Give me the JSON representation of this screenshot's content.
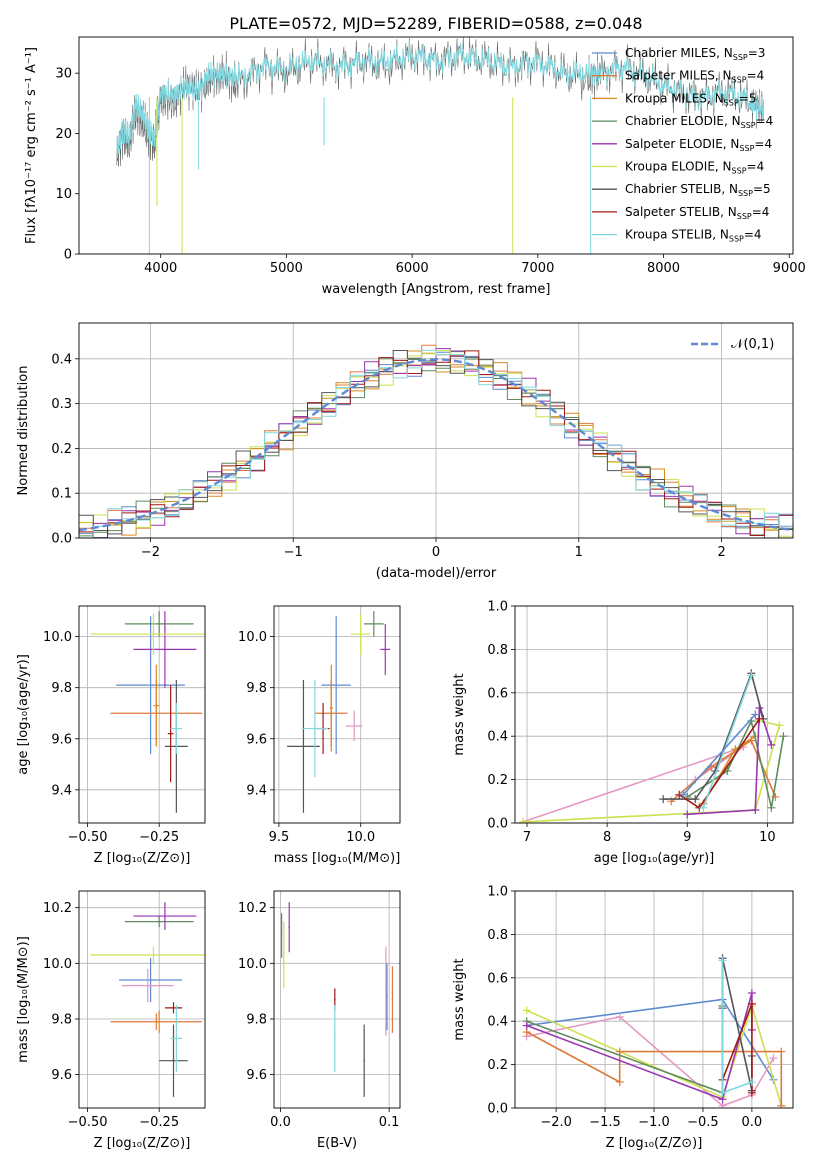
{
  "title": "PLATE=0572, MJD=52289, FIBERID=0588, z=0.048",
  "legend_entries": [
    {
      "label": "Chabrier MILES, N",
      "sub": "SSP",
      "suffix": "=3",
      "color": "#5f8ad3"
    },
    {
      "label": "Salpeter MILES, N",
      "sub": "SSP",
      "suffix": "=4",
      "color": "#e07a3c"
    },
    {
      "label": "Kroupa MILES, N",
      "sub": "SSP",
      "suffix": "=5",
      "color": "#d98a1f"
    },
    {
      "label": "Chabrier ELODIE, N",
      "sub": "SSP",
      "suffix": "=4",
      "color": "#5e8c5e"
    },
    {
      "label": "Salpeter ELODIE, N",
      "sub": "SSP",
      "suffix": "=4",
      "color": "#9a36b0"
    },
    {
      "label": "Kroupa ELODIE, N",
      "sub": "SSP",
      "suffix": "=4",
      "color": "#cde050"
    },
    {
      "label": "Chabrier STELIB, N",
      "sub": "SSP",
      "suffix": "=5",
      "color": "#555555"
    },
    {
      "label": "Salpeter STELIB, N",
      "sub": "SSP",
      "suffix": "=4",
      "color": "#a01818"
    },
    {
      "label": "Kroupa STELIB, N",
      "sub": "SSP",
      "suffix": "=4",
      "color": "#7fd8e0"
    }
  ],
  "chart_data": [
    {
      "id": "spectrum",
      "type": "line",
      "xlabel": "wavelength [Angstrom, rest frame]",
      "ylabel": "Flux [fλ10⁻¹⁷ erg cm⁻² s⁻¹ A⁻¹]",
      "xlim": [
        3350,
        9030
      ],
      "ylim": [
        0,
        36
      ],
      "xticks": [
        4000,
        5000,
        6000,
        7000,
        8000,
        9000
      ],
      "yticks": [
        0,
        10,
        20,
        30
      ],
      "x": [
        3650,
        3700,
        3750,
        3800,
        3850,
        3900,
        3950,
        4000,
        4100,
        4200,
        4300,
        4400,
        4500,
        4600,
        4800,
        5000,
        5200,
        5400,
        5600,
        5800,
        6000,
        6200,
        6400,
        6600,
        6800,
        7000,
        7200,
        7400,
        7500,
        7700,
        7900,
        8100,
        8300,
        8500,
        8700,
        8800
      ],
      "series": [
        {
          "name": "observed",
          "color": "#666666",
          "values": [
            16,
            20,
            18,
            24,
            22,
            20,
            18,
            26,
            25,
            28,
            27,
            29,
            30,
            28,
            31,
            30,
            32,
            31,
            32,
            31,
            33,
            32,
            33,
            32,
            31,
            32,
            30,
            29,
            30,
            31,
            29,
            27,
            26,
            27,
            25,
            24
          ]
        },
        {
          "name": "model",
          "color": "#7fd8e0",
          "values": [
            17,
            21,
            19,
            25,
            23,
            21,
            19,
            27,
            26,
            28,
            27,
            30,
            30,
            29,
            31,
            31,
            32,
            31,
            32,
            32,
            33,
            32,
            33,
            32,
            31,
            32,
            30,
            30,
            30,
            31,
            29,
            27,
            26,
            27,
            25,
            24
          ]
        }
      ]
    },
    {
      "id": "residual-histogram",
      "type": "line",
      "xlabel": "(data-model)/error",
      "ylabel": "Normed distribution",
      "xlim": [
        -2.5,
        2.5
      ],
      "ylim": [
        0,
        0.48
      ],
      "xticks": [
        -2,
        -1,
        0,
        1,
        2
      ],
      "yticks": [
        0.0,
        0.1,
        0.2,
        0.3,
        0.4
      ],
      "legend": "𝒩(0,1)",
      "gaussian": {
        "mean": 0,
        "sigma": 1,
        "color": "#5f8ad3"
      }
    },
    {
      "id": "age-vs-Z",
      "type": "scatter",
      "xlabel": "Z [log₁₀(Z/Z⊙)]",
      "ylabel": "age  [log₁₀(age/yr)]",
      "xlim": [
        -0.53,
        -0.09
      ],
      "ylim": [
        9.27,
        10.12
      ],
      "xticks": [
        -0.5,
        -0.25
      ],
      "yticks": [
        9.4,
        9.6,
        9.8,
        10.0
      ],
      "points": [
        {
          "x": -0.28,
          "y": 9.81,
          "xerr": 0.12,
          "yerr": 0.27,
          "color": "#5f8ad3"
        },
        {
          "x": -0.26,
          "y": 9.7,
          "xerr": 0.16,
          "yerr": 0.13,
          "color": "#e07a3c"
        },
        {
          "x": -0.26,
          "y": 9.73,
          "xerr": 0.01,
          "yerr": 0.16,
          "color": "#d98a1f"
        },
        {
          "x": -0.25,
          "y": 10.05,
          "xerr": 0.12,
          "yerr": 0.05,
          "color": "#5e8c5e"
        },
        {
          "x": -0.23,
          "y": 9.95,
          "xerr": 0.11,
          "yerr": 0.15,
          "color": "#9a36b0"
        },
        {
          "x": -0.27,
          "y": 10.01,
          "xerr": 0.22,
          "yerr": 0.08,
          "color": "#cde050"
        },
        {
          "x": -0.19,
          "y": 9.57,
          "xerr": 0.04,
          "yerr": 0.26,
          "color": "#555555"
        },
        {
          "x": -0.21,
          "y": 9.62,
          "xerr": 0.01,
          "yerr": 0.19,
          "color": "#a01818"
        },
        {
          "x": -0.19,
          "y": 9.64,
          "xerr": 0.02,
          "yerr": 0.1,
          "color": "#7fd8e0"
        }
      ]
    },
    {
      "id": "age-vs-mass",
      "type": "scatter",
      "xlabel": "mass [log₁₀(M/M⊙)]",
      "ylabel": "",
      "xlim": [
        9.47,
        10.24
      ],
      "ylim": [
        9.27,
        10.12
      ],
      "xticks": [
        9.5,
        10.0
      ],
      "yticks": [
        9.4,
        9.6,
        9.8,
        10.0
      ],
      "points": [
        {
          "x": 9.85,
          "y": 9.81,
          "xerr": 0.09,
          "yerr": 0.27,
          "color": "#5f8ad3"
        },
        {
          "x": 9.82,
          "y": 9.7,
          "xerr": 0.1,
          "yerr": 0.13,
          "color": "#e07a3c"
        },
        {
          "x": 9.82,
          "y": 9.72,
          "xerr": 0.01,
          "yerr": 0.17,
          "color": "#d98a1f"
        },
        {
          "x": 10.08,
          "y": 10.05,
          "xerr": 0.06,
          "yerr": 0.05,
          "color": "#5e8c5e"
        },
        {
          "x": 10.15,
          "y": 9.95,
          "xerr": 0.03,
          "yerr": 0.1,
          "color": "#9a36b0"
        },
        {
          "x": 10.0,
          "y": 10.01,
          "xerr": 0.06,
          "yerr": 0.08,
          "color": "#cde050"
        },
        {
          "x": 9.65,
          "y": 9.57,
          "xerr": 0.1,
          "yerr": 0.26,
          "color": "#555555"
        },
        {
          "x": 9.77,
          "y": 9.64,
          "xerr": 0.04,
          "yerr": 0.1,
          "color": "#a01818"
        },
        {
          "x": 9.72,
          "y": 9.64,
          "xerr": 0.08,
          "yerr": 0.19,
          "color": "#7fd8e0"
        },
        {
          "x": 9.96,
          "y": 9.65,
          "xerr": 0.05,
          "yerr": 0.06,
          "color": "#e598c4"
        }
      ]
    },
    {
      "id": "mass-weight-vs-age",
      "type": "line",
      "xlabel": "age  [log₁₀(age/yr)]",
      "ylabel": "mass weight",
      "xlim": [
        6.85,
        10.32
      ],
      "ylim": [
        0,
        1.0
      ],
      "xticks": [
        7,
        8,
        9,
        10
      ],
      "yticks": [
        0.0,
        0.2,
        0.4,
        0.6,
        0.8,
        1.0
      ],
      "series": [
        {
          "color": "#e598c4",
          "x": [
            6.95,
            9.7,
            9.1
          ],
          "y": [
            0.005,
            0.35,
            0.2
          ]
        },
        {
          "color": "#cde050",
          "x": [
            6.95,
            9.85,
            10.15,
            9.9
          ],
          "y": [
            0.005,
            0.06,
            0.45,
            0.47
          ]
        },
        {
          "color": "#e07a3c",
          "x": [
            8.8,
            9.3,
            9.8,
            10.1
          ],
          "y": [
            0.1,
            0.26,
            0.38,
            0.12
          ]
        },
        {
          "color": "#d98a1f",
          "x": [
            9.2,
            9.6,
            9.85
          ],
          "y": [
            0.09,
            0.34,
            0.4
          ]
        },
        {
          "color": "#5e8c5e",
          "x": [
            9.0,
            9.5,
            9.8,
            10.05,
            10.2
          ],
          "y": [
            0.12,
            0.24,
            0.47,
            0.07,
            0.4
          ]
        },
        {
          "color": "#9a36b0",
          "x": [
            9.0,
            9.85,
            9.9,
            10.05
          ],
          "y": [
            0.04,
            0.06,
            0.53,
            0.36
          ]
        },
        {
          "color": "#555555",
          "x": [
            8.7,
            9.1,
            9.35,
            9.8,
            9.95
          ],
          "y": [
            0.11,
            0.11,
            0.24,
            0.69,
            0.48
          ]
        },
        {
          "color": "#a01818",
          "x": [
            8.9,
            9.15,
            9.9
          ],
          "y": [
            0.13,
            0.07,
            0.48
          ]
        },
        {
          "color": "#7fd8e0",
          "x": [
            9.2,
            9.8
          ],
          "y": [
            0.07,
            0.68
          ]
        },
        {
          "color": "#5f8ad3",
          "x": [
            8.95,
            9.85
          ],
          "y": [
            0.13,
            0.5
          ]
        }
      ]
    },
    {
      "id": "mass-vs-Z",
      "type": "scatter",
      "xlabel": "Z [log₁₀(Z/Z⊙)]",
      "ylabel": "mass [log₁₀(M/M⊙)]",
      "xlim": [
        -0.53,
        -0.09
      ],
      "ylim": [
        9.48,
        10.26
      ],
      "xticks": [
        -0.5,
        -0.25
      ],
      "yticks": [
        9.6,
        9.8,
        10.0,
        10.2
      ],
      "points": [
        {
          "x": -0.28,
          "y": 9.94,
          "xerr": 0.11,
          "yerr": 0.08,
          "color": "#5f8ad3"
        },
        {
          "x": -0.26,
          "y": 9.79,
          "xerr": 0.16,
          "yerr": 0.03,
          "color": "#e07a3c"
        },
        {
          "x": -0.25,
          "y": 9.79,
          "xerr": 0.01,
          "yerr": 0.04,
          "color": "#d98a1f"
        },
        {
          "x": -0.25,
          "y": 10.15,
          "xerr": 0.12,
          "yerr": 0.02,
          "color": "#5e8c5e"
        },
        {
          "x": -0.23,
          "y": 10.17,
          "xerr": 0.11,
          "yerr": 0.05,
          "color": "#9a36b0"
        },
        {
          "x": -0.27,
          "y": 10.03,
          "xerr": 0.22,
          "yerr": 0.03,
          "color": "#cde050"
        },
        {
          "x": -0.2,
          "y": 9.65,
          "xerr": 0.05,
          "yerr": 0.13,
          "color": "#555555"
        },
        {
          "x": -0.2,
          "y": 9.84,
          "xerr": 0.03,
          "yerr": 0.02,
          "color": "#a01818"
        },
        {
          "x": -0.19,
          "y": 9.73,
          "xerr": 0.02,
          "yerr": 0.12,
          "color": "#7fd8e0"
        },
        {
          "x": -0.29,
          "y": 9.92,
          "xerr": 0.09,
          "yerr": 0.06,
          "color": "#e598c4"
        }
      ]
    },
    {
      "id": "mass-vs-EBV",
      "type": "scatter",
      "xlabel": "E(B-V)",
      "ylabel": "",
      "xlim": [
        -0.006,
        0.11
      ],
      "ylim": [
        9.48,
        10.26
      ],
      "xticks": [
        0,
        0.1
      ],
      "yticks": [
        9.6,
        9.8,
        10.0,
        10.2
      ],
      "points": [
        {
          "x": 0.001,
          "y": 10.1,
          "xerr": 0,
          "yerr": 0.08,
          "color": "#5e8c5e"
        },
        {
          "x": 0.003,
          "y": 10.03,
          "xerr": 0,
          "yerr": 0.12,
          "color": "#cde050"
        },
        {
          "x": 0.008,
          "y": 10.13,
          "xerr": 0,
          "yerr": 0.09,
          "color": "#9a36b0"
        },
        {
          "x": 0.05,
          "y": 9.87,
          "xerr": 0,
          "yerr": 0.04,
          "color": "#a01818"
        },
        {
          "x": 0.05,
          "y": 9.73,
          "xerr": 0,
          "yerr": 0.12,
          "color": "#7fd8e0"
        },
        {
          "x": 0.077,
          "y": 9.65,
          "xerr": 0,
          "yerr": 0.13,
          "color": "#555555"
        },
        {
          "x": 0.097,
          "y": 9.9,
          "xerr": 0,
          "yerr": 0.16,
          "color": "#e598c4"
        },
        {
          "x": 0.098,
          "y": 9.88,
          "xerr": 0,
          "yerr": 0.12,
          "color": "#5f8ad3"
        },
        {
          "x": 0.103,
          "y": 9.87,
          "xerr": 0,
          "yerr": 0.12,
          "color": "#e07a3c"
        }
      ]
    },
    {
      "id": "mass-weight-vs-Z",
      "type": "line",
      "xlabel": "Z [log₁₀(Z/Z⊙)]",
      "ylabel": "mass weight",
      "xlim": [
        -2.42,
        0.42
      ],
      "ylim": [
        0,
        1.0
      ],
      "xticks": [
        -2.0,
        -1.5,
        -1.0,
        -0.5,
        0.0
      ],
      "yticks": [
        0.0,
        0.2,
        0.4,
        0.6,
        0.8,
        1.0
      ],
      "series": [
        {
          "color": "#5f8ad3",
          "x": [
            -2.3,
            -0.3,
            0.22
          ],
          "y": [
            0.38,
            0.5,
            0.13
          ]
        },
        {
          "color": "#e598c4",
          "x": [
            -2.3,
            -1.35,
            -0.3,
            0.0,
            0.22
          ],
          "y": [
            0.33,
            0.42,
            0.01,
            0.06,
            0.23
          ]
        },
        {
          "color": "#cde050",
          "x": [
            -2.3,
            -0.3,
            0.0,
            0.3
          ],
          "y": [
            0.45,
            0.05,
            0.47,
            0.01
          ]
        },
        {
          "color": "#e07a3c",
          "x": [
            -2.3,
            -1.35,
            -1.35,
            0.3,
            0.3
          ],
          "y": [
            0.35,
            0.12,
            0.26,
            0.26,
            0.01
          ]
        },
        {
          "color": "#5e8c5e",
          "x": [
            -2.3,
            -0.3,
            -0.3
          ],
          "y": [
            0.4,
            0.07,
            0.47
          ]
        },
        {
          "color": "#9a36b0",
          "x": [
            -2.3,
            -0.3,
            0.0,
            0.0
          ],
          "y": [
            0.38,
            0.04,
            0.53,
            0.36
          ]
        },
        {
          "color": "#555555",
          "x": [
            -0.3,
            -0.3,
            0.0,
            0.0
          ],
          "y": [
            0.46,
            0.69,
            0.08,
            0.24
          ]
        },
        {
          "color": "#a01818",
          "x": [
            -0.3,
            0.0,
            0.0
          ],
          "y": [
            0.13,
            0.48,
            0.07
          ]
        },
        {
          "color": "#7fd8e0",
          "x": [
            -0.3,
            -0.3,
            0.0
          ],
          "y": [
            0.68,
            0.07,
            0.12
          ]
        }
      ]
    }
  ]
}
